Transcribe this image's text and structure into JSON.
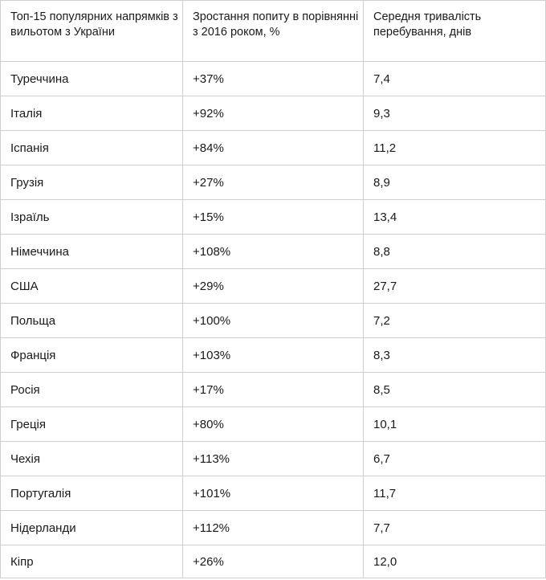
{
  "table": {
    "headers": [
      "Топ-15 популярних напрямків з вильотом з України",
      "Зростання попиту в порівнянні з 2016 роком, %",
      "Середня тривалість перебування, днів"
    ],
    "rows": [
      {
        "country": "Туреччина",
        "growth": "+37%",
        "duration": "7,4"
      },
      {
        "country": "Італія",
        "growth": "+92%",
        "duration": "9,3"
      },
      {
        "country": "Іспанія",
        "growth": "+84%",
        "duration": "11,2"
      },
      {
        "country": "Грузія",
        "growth": "+27%",
        "duration": "8,9"
      },
      {
        "country": "Ізраїль",
        "growth": "+15%",
        "duration": "13,4"
      },
      {
        "country": "Німеччина",
        "growth": "+108%",
        "duration": "8,8"
      },
      {
        "country": "США",
        "growth": "+29%",
        "duration": "27,7"
      },
      {
        "country": "Польща",
        "growth": "+100%",
        "duration": "7,2"
      },
      {
        "country": "Франція",
        "growth": "+103%",
        "duration": "8,3"
      },
      {
        "country": "Росія",
        "growth": "+17%",
        "duration": "8,5"
      },
      {
        "country": "Греція",
        "growth": "+80%",
        "duration": "10,1"
      },
      {
        "country": "Чехія",
        "growth": "+113%",
        "duration": "6,7"
      },
      {
        "country": "Португалія",
        "growth": "+101%",
        "duration": "11,7"
      },
      {
        "country": "Нідерланди",
        "growth": "+112%",
        "duration": "7,7"
      },
      {
        "country": "Кіпр",
        "growth": "+26%",
        "duration": "12,0"
      }
    ]
  }
}
